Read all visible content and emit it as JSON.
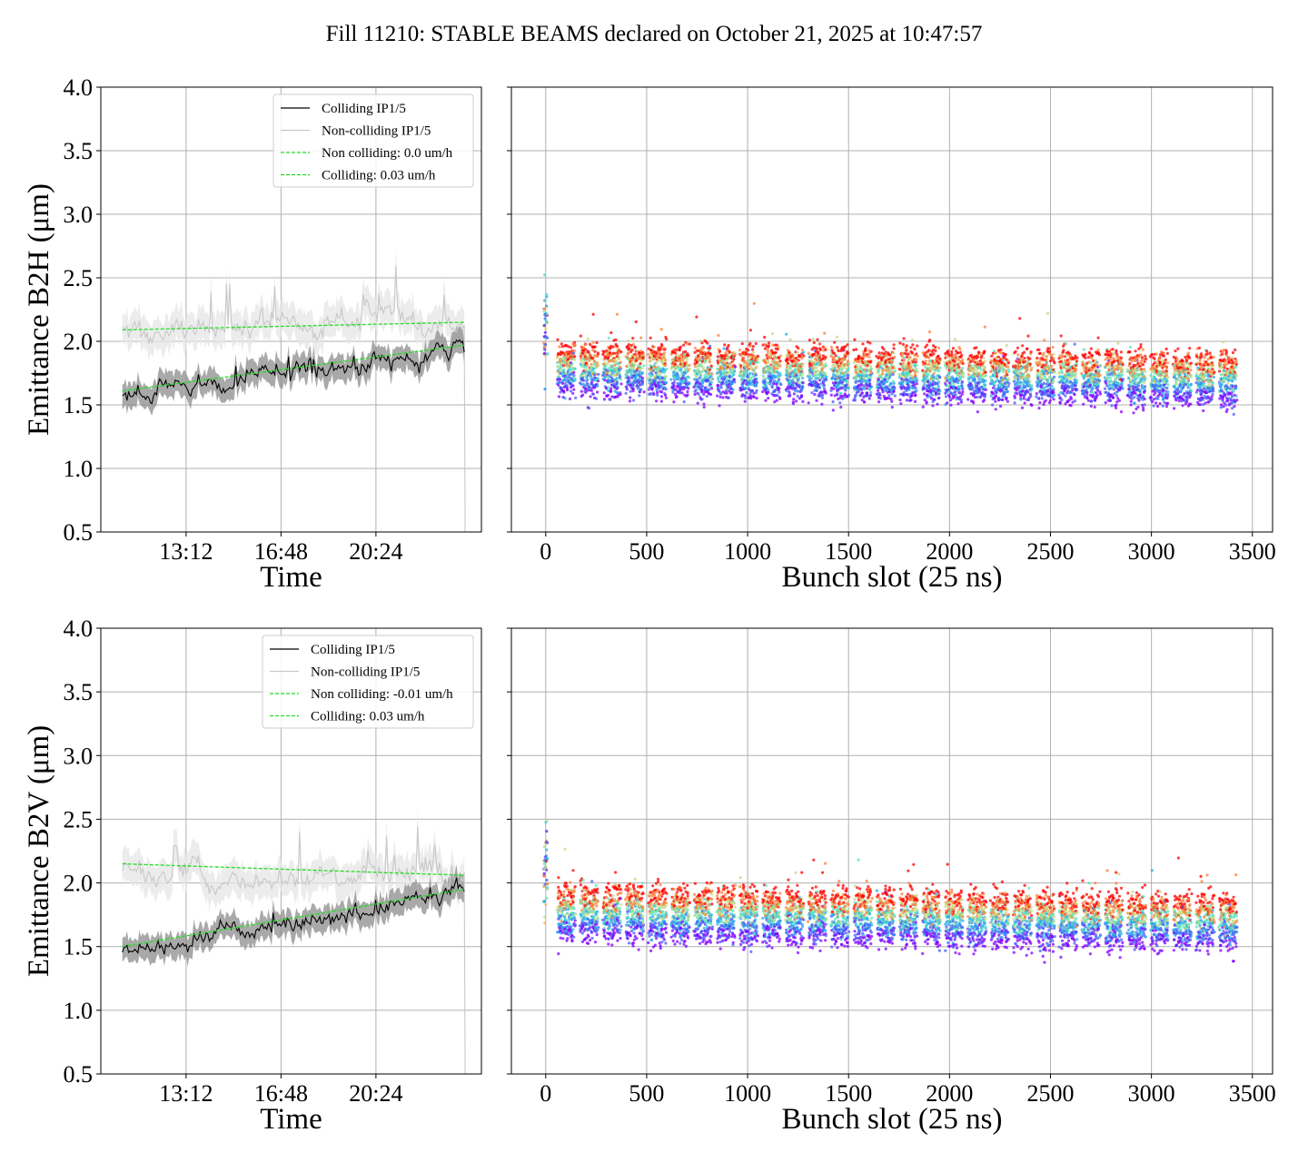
{
  "title": "Fill 11210: STABLE BEAMS declared on October 21, 2025 at 10:47:57",
  "colors": {
    "colliding": "#000000",
    "noncolliding": "#c8c8c8",
    "band_colliding": "#8c8c8c",
    "band_noncolliding": "#e6e6e6",
    "fit": "#22dd22",
    "grid": "#b0b0b0"
  },
  "chart_data": [
    {
      "type": "line",
      "panel": "time-B2H",
      "ylabel": "Emittance B2H (μm)",
      "xlabel": "Time",
      "ylim": [
        0.5,
        4.0
      ],
      "yticks": [
        "0.5",
        "1.0",
        "1.5",
        "2.0",
        "2.5",
        "3.0",
        "3.5",
        "4.0"
      ],
      "x_range_hours": [
        "10:47",
        "23:45"
      ],
      "xticks": [
        "13:12",
        "16:48",
        "20:24"
      ],
      "grid": true,
      "legend_position": "top-right",
      "series": [
        {
          "name": "Colliding IP1/5",
          "start": 1.55,
          "end": 1.95,
          "color": "#000000"
        },
        {
          "name": "Non-colliding IP1/5",
          "start": 2.1,
          "end": 2.18,
          "color": "#c8c8c8"
        },
        {
          "name": "Non colliding: 0.0 um/h",
          "start": 2.09,
          "end": 2.15,
          "color": "#22dd22",
          "dashed": true
        },
        {
          "name": "Colliding: 0.03 um/h",
          "start": 1.61,
          "end": 1.97,
          "color": "#22dd22",
          "dashed": true
        }
      ]
    },
    {
      "type": "scatter",
      "panel": "bunch-B2H",
      "xlabel": "Bunch slot (25 ns)",
      "xlim": [
        -170,
        3600
      ],
      "xticks": [
        "0",
        "500",
        "1000",
        "1500",
        "2000",
        "2500",
        "3000",
        "3500"
      ],
      "ylim": [
        0.5,
        4.0
      ],
      "grid": true,
      "color_scale": "rainbow (time)",
      "value_range_start": [
        1.45,
        1.75
      ],
      "value_range_end": [
        1.75,
        2.0
      ]
    },
    {
      "type": "line",
      "panel": "time-B2V",
      "ylabel": "Emittance B2V (μm)",
      "xlabel": "Time",
      "ylim": [
        0.5,
        4.0
      ],
      "yticks": [
        "0.5",
        "1.0",
        "1.5",
        "2.0",
        "2.5",
        "3.0",
        "3.5",
        "4.0"
      ],
      "x_range_hours": [
        "10:47",
        "23:45"
      ],
      "xticks": [
        "13:12",
        "16:48",
        "20:24"
      ],
      "grid": true,
      "legend_position": "top-right",
      "series": [
        {
          "name": "Colliding IP1/5",
          "start": 1.48,
          "end": 1.93,
          "color": "#000000"
        },
        {
          "name": "Non-colliding IP1/5",
          "start": 2.1,
          "end": 2.05,
          "color": "#c8c8c8"
        },
        {
          "name": "Non colliding: -0.01 um/h",
          "start": 2.15,
          "end": 2.06,
          "color": "#22dd22",
          "dashed": true
        },
        {
          "name": "Colliding: 0.03 um/h",
          "start": 1.5,
          "end": 1.95,
          "color": "#22dd22",
          "dashed": true
        }
      ]
    },
    {
      "type": "scatter",
      "panel": "bunch-B2V",
      "xlabel": "Bunch slot (25 ns)",
      "xlim": [
        -170,
        3600
      ],
      "xticks": [
        "0",
        "500",
        "1000",
        "1500",
        "2000",
        "2500",
        "3000",
        "3500"
      ],
      "ylim": [
        0.5,
        4.0
      ],
      "grid": true,
      "color_scale": "rainbow (time)",
      "value_range_start": [
        1.45,
        1.7
      ],
      "value_range_end": [
        1.8,
        1.95
      ]
    }
  ]
}
